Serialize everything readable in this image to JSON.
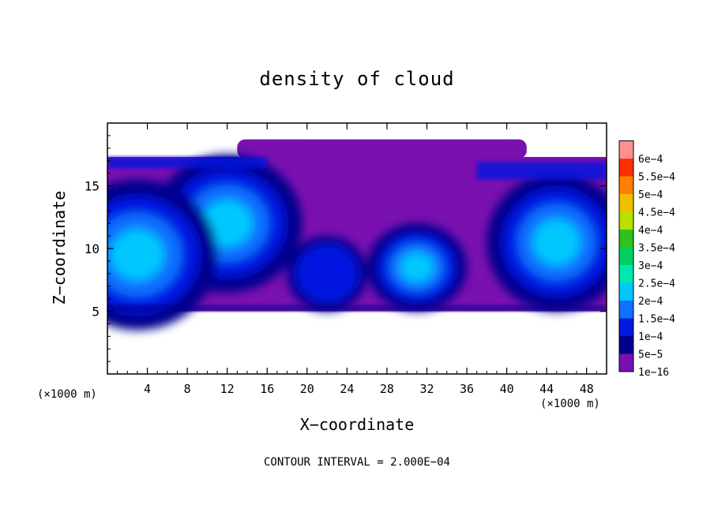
{
  "chart_data": {
    "type": "heatmap",
    "title": "density of cloud",
    "xlabel": "X−coordinate",
    "ylabel": "Z−coordinate",
    "x_unit_note": "(×1000 m)",
    "x_unit_note_right": "(×1000 m)",
    "footer": "CONTOUR INTERVAL = 2.000E−04",
    "xlim": [
      0,
      50
    ],
    "ylim": [
      0,
      20
    ],
    "xticks": [
      4,
      8,
      12,
      16,
      20,
      24,
      28,
      32,
      36,
      40,
      44,
      48
    ],
    "yticks": [
      5,
      10,
      15
    ],
    "colorbar": {
      "labels": [
        "1e−16",
        "5e−5",
        "1e−4",
        "1.5e−4",
        "2e−4",
        "2.5e−4",
        "3e−4",
        "3.5e−4",
        "4e−4",
        "4.5e−4",
        "5e−4",
        "5.5e−4",
        "6e−4"
      ],
      "levels": [
        1e-16,
        5e-05,
        0.0001,
        0.00015,
        0.0002,
        0.00025,
        0.0003,
        0.00035,
        0.0004,
        0.00045,
        0.0005,
        0.00055,
        0.0006
      ],
      "colors": [
        "#7a10b0",
        "#00008c",
        "#0018e0",
        "#1070ff",
        "#00c8ff",
        "#00e8b0",
        "#00d060",
        "#30c020",
        "#b8e000",
        "#f0c000",
        "#ff8000",
        "#ff3000",
        "#ff9090"
      ]
    },
    "cloud_extent": {
      "x_range": [
        0,
        50
      ],
      "z_base": 5,
      "z_top": 17.3,
      "overshoot_x": [
        13,
        42
      ],
      "overshoot_z_top": 18.7
    },
    "cores": [
      {
        "x": 12,
        "z": 12,
        "level": 0.0002
      },
      {
        "x": 31,
        "z": 8.5,
        "level": 0.0002
      },
      {
        "x": 3,
        "z": 9.5,
        "level": 0.0002
      },
      {
        "x": 45,
        "z": 10.5,
        "level": 0.0002
      },
      {
        "x": 22,
        "z": 8,
        "level": 0.0001
      }
    ]
  }
}
